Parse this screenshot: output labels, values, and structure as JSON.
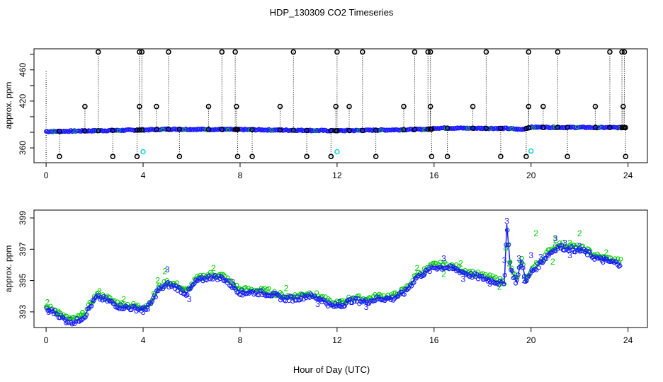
{
  "title": "HDP_130309  CO2 Timeseries",
  "xlabel": "Hour of Day (UTC)",
  "colors": {
    "primary": "#1a1aff",
    "secondary": "#00cc00",
    "flag_low": "#00cccc",
    "raw_flag": "#000000"
  },
  "chart_data": [
    {
      "type": "scatter",
      "panel": "top",
      "ylabel": "approx. ppm",
      "xlim": [
        -0.5,
        24.8
      ],
      "ylim": [
        341,
        487
      ],
      "xticks": [
        0,
        4,
        8,
        12,
        16,
        20,
        24
      ],
      "yticks": [
        360,
        420,
        460
      ],
      "yticks_all": [
        360,
        380,
        400,
        420,
        440,
        460,
        480
      ],
      "baseline": [
        [
          0,
          381
        ],
        [
          2,
          382
        ],
        [
          4,
          383
        ],
        [
          5,
          384
        ],
        [
          8,
          383.5
        ],
        [
          12,
          382
        ],
        [
          14,
          383
        ],
        [
          15.9,
          384
        ],
        [
          16,
          385.5
        ],
        [
          19,
          385
        ],
        [
          19.6,
          383.5
        ],
        [
          20,
          386.5
        ],
        [
          23.7,
          386
        ]
      ],
      "spike_high": [
        2.15,
        3.85,
        3.95,
        5.05,
        7.25,
        7.8,
        10.2,
        12,
        13.05,
        15.2,
        15.75,
        15.85,
        18.15,
        19.9,
        21.1,
        23.25,
        23.75,
        23.85
      ],
      "spike_mid": [
        1.6,
        3.85,
        4.55,
        6.7,
        7.85,
        9.65,
        11.95,
        12.5,
        14.75,
        15.85,
        17.6,
        19.9,
        20.5,
        22.65,
        23.8
      ],
      "spike_low": [
        0.55,
        2.75,
        3.75,
        5.5,
        7.9,
        8.5,
        10.75,
        11.75,
        13.6,
        15.9,
        16.55,
        18.75,
        19.8,
        21.5,
        23.9
      ],
      "high_value": 483,
      "mid_value": 413,
      "low_value": 349,
      "cyan_points": [
        [
          4,
          355
        ],
        [
          12,
          355
        ],
        [
          20,
          356
        ]
      ],
      "tall_trace_start": [
        0,
        458
      ]
    },
    {
      "type": "scatter",
      "panel": "bottom",
      "ylabel": "approx. ppm",
      "xlim": [
        -0.5,
        24.8
      ],
      "ylim": [
        392,
        399.5
      ],
      "xticks": [
        0,
        4,
        8,
        12,
        16,
        20,
        24
      ],
      "yticks": [
        393,
        395,
        397,
        399
      ],
      "series": [
        {
          "name": "2",
          "label": "2",
          "color": "#00cc00"
        },
        {
          "name": "3",
          "label": "3",
          "color": "#1a1aff"
        }
      ],
      "trend": [
        [
          0,
          393.2
        ],
        [
          0.4,
          393.0
        ],
        [
          0.8,
          392.5
        ],
        [
          1.2,
          392.4
        ],
        [
          1.6,
          392.8
        ],
        [
          1.9,
          393.6
        ],
        [
          2.1,
          394.0
        ],
        [
          2.5,
          393.8
        ],
        [
          3.0,
          393.4
        ],
        [
          3.5,
          393.3
        ],
        [
          4.0,
          393.2
        ],
        [
          4.3,
          393.5
        ],
        [
          4.6,
          394.4
        ],
        [
          5.0,
          394.8
        ],
        [
          5.4,
          394.6
        ],
        [
          5.8,
          394.2
        ],
        [
          6.2,
          395.0
        ],
        [
          6.8,
          395.3
        ],
        [
          7.3,
          395.2
        ],
        [
          7.6,
          394.8
        ],
        [
          8.0,
          394.3
        ],
        [
          8.6,
          394.3
        ],
        [
          9.2,
          394.2
        ],
        [
          9.8,
          393.9
        ],
        [
          10.3,
          393.9
        ],
        [
          10.8,
          394.1
        ],
        [
          11.3,
          393.9
        ],
        [
          11.8,
          393.4
        ],
        [
          12.2,
          393.5
        ],
        [
          12.6,
          393.8
        ],
        [
          13.2,
          393.7
        ],
        [
          13.7,
          393.9
        ],
        [
          14.3,
          393.9
        ],
        [
          14.8,
          394.3
        ],
        [
          15.3,
          395.3
        ],
        [
          15.7,
          395.6
        ],
        [
          16.0,
          395.9
        ],
        [
          16.5,
          395.9
        ],
        [
          17.0,
          395.7
        ],
        [
          17.5,
          395.4
        ],
        [
          18.0,
          395.2
        ],
        [
          18.5,
          395.0
        ],
        [
          18.9,
          394.8
        ],
        [
          19.0,
          398.6
        ],
        [
          19.15,
          395.8
        ],
        [
          19.4,
          394.9
        ],
        [
          19.6,
          396.3
        ],
        [
          19.8,
          394.9
        ],
        [
          20.0,
          395.6
        ],
        [
          20.3,
          396.0
        ],
        [
          20.7,
          396.7
        ],
        [
          21.1,
          397.2
        ],
        [
          21.6,
          397.1
        ],
        [
          22.2,
          396.9
        ],
        [
          22.8,
          396.4
        ],
        [
          23.4,
          396.2
        ],
        [
          23.7,
          396.1
        ]
      ],
      "labeled_points": [
        {
          "x": 0.05,
          "y": 393.6,
          "label": "2"
        },
        {
          "x": 0.5,
          "y": 393.0,
          "label": "2"
        },
        {
          "x": 1.5,
          "y": 392.9,
          "label": "2"
        },
        {
          "x": 2.2,
          "y": 394.3,
          "label": "2"
        },
        {
          "x": 3.2,
          "y": 393.8,
          "label": "2"
        },
        {
          "x": 4.6,
          "y": 395.0,
          "label": "2"
        },
        {
          "x": 4.9,
          "y": 395.6,
          "label": "2"
        },
        {
          "x": 6.9,
          "y": 395.8,
          "label": "2"
        },
        {
          "x": 9.9,
          "y": 394.5,
          "label": "2"
        },
        {
          "x": 15.3,
          "y": 395.8,
          "label": "2"
        },
        {
          "x": 16.4,
          "y": 395.4,
          "label": "2"
        },
        {
          "x": 17.1,
          "y": 396.1,
          "label": "2"
        },
        {
          "x": 18.7,
          "y": 394.6,
          "label": "2"
        },
        {
          "x": 19.1,
          "y": 396.1,
          "label": "2"
        },
        {
          "x": 20.2,
          "y": 398.0,
          "label": "2"
        },
        {
          "x": 20.9,
          "y": 396.2,
          "label": "2"
        },
        {
          "x": 21.0,
          "y": 397.6,
          "label": "2"
        },
        {
          "x": 21.6,
          "y": 397.4,
          "label": "2"
        },
        {
          "x": 22.0,
          "y": 398.0,
          "label": "2"
        },
        {
          "x": 23.1,
          "y": 396.8,
          "label": "2"
        },
        {
          "x": 0.1,
          "y": 393.0,
          "label": "3"
        },
        {
          "x": 4.0,
          "y": 393.0,
          "label": "3"
        },
        {
          "x": 4.2,
          "y": 393.2,
          "label": "3"
        },
        {
          "x": 5.0,
          "y": 395.7,
          "label": "3"
        },
        {
          "x": 5.9,
          "y": 393.8,
          "label": "3"
        },
        {
          "x": 7.7,
          "y": 394.9,
          "label": "3"
        },
        {
          "x": 8.1,
          "y": 394.1,
          "label": "3"
        },
        {
          "x": 11.2,
          "y": 393.5,
          "label": "3"
        },
        {
          "x": 12.1,
          "y": 393.6,
          "label": "3"
        },
        {
          "x": 13.2,
          "y": 393.3,
          "label": "3"
        },
        {
          "x": 15.6,
          "y": 395.4,
          "label": "3"
        },
        {
          "x": 16.4,
          "y": 396.4,
          "label": "3"
        },
        {
          "x": 16.8,
          "y": 395.8,
          "label": "3"
        },
        {
          "x": 17.2,
          "y": 395.1,
          "label": "3"
        },
        {
          "x": 18.3,
          "y": 394.8,
          "label": "3"
        },
        {
          "x": 19.0,
          "y": 398.8,
          "label": "3"
        },
        {
          "x": 18.9,
          "y": 396.3,
          "label": "3"
        },
        {
          "x": 19.5,
          "y": 396.4,
          "label": "3"
        },
        {
          "x": 19.7,
          "y": 395.0,
          "label": "3"
        },
        {
          "x": 20.0,
          "y": 396.6,
          "label": "3"
        },
        {
          "x": 20.4,
          "y": 396.5,
          "label": "3"
        },
        {
          "x": 21.0,
          "y": 397.7,
          "label": "3"
        },
        {
          "x": 21.4,
          "y": 397.4,
          "label": "3"
        },
        {
          "x": 21.6,
          "y": 396.6,
          "label": "3"
        },
        {
          "x": 22.0,
          "y": 397.2,
          "label": "3"
        },
        {
          "x": 23.0,
          "y": 396.4,
          "label": "3"
        }
      ]
    }
  ]
}
